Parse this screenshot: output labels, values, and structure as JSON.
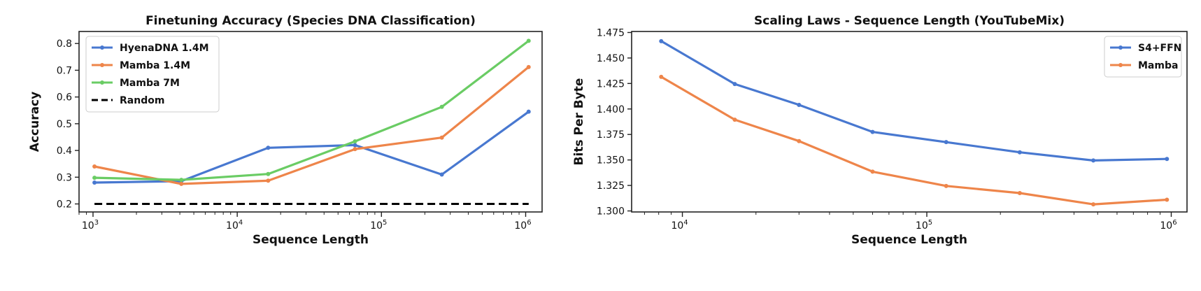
{
  "chart_data": [
    {
      "type": "line",
      "title": "Finetuning Accuracy (Species DNA Classification)",
      "xlabel": "Sequence Length",
      "ylabel": "Accuracy",
      "xscale": "log",
      "xlim": [
        800,
        1300000
      ],
      "ylim": [
        0.17,
        0.845
      ],
      "xticks": [
        {
          "value": 1000,
          "base": "10",
          "exp": "3"
        },
        {
          "value": 10000,
          "base": "10",
          "exp": "4"
        },
        {
          "value": 100000,
          "base": "10",
          "exp": "5"
        },
        {
          "value": 1000000,
          "base": "10",
          "exp": "6"
        }
      ],
      "yticks": [
        {
          "value": 0.2,
          "label": "0.2"
        },
        {
          "value": 0.3,
          "label": "0.3"
        },
        {
          "value": 0.4,
          "label": "0.4"
        },
        {
          "value": 0.5,
          "label": "0.5"
        },
        {
          "value": 0.6,
          "label": "0.6"
        },
        {
          "value": 0.7,
          "label": "0.7"
        },
        {
          "value": 0.8,
          "label": "0.8"
        }
      ],
      "legend_position": "top-left",
      "series": [
        {
          "name": "HyenaDNA 1.4M",
          "color": "#4878d0",
          "style": "solid",
          "markers": true,
          "x": [
            1024,
            4096,
            16384,
            65536,
            262144,
            1048576
          ],
          "y": [
            0.28,
            0.285,
            0.41,
            0.42,
            0.31,
            0.545
          ]
        },
        {
          "name": "Mamba 1.4M",
          "color": "#ee854a",
          "style": "solid",
          "markers": true,
          "x": [
            1024,
            4096,
            16384,
            65536,
            262144,
            1048576
          ],
          "y": [
            0.34,
            0.275,
            0.287,
            0.405,
            0.448,
            0.712
          ]
        },
        {
          "name": "Mamba 7M",
          "color": "#6acc64",
          "style": "solid",
          "markers": true,
          "x": [
            1024,
            4096,
            16384,
            65536,
            262144,
            1048576
          ],
          "y": [
            0.298,
            0.29,
            0.312,
            0.434,
            0.563,
            0.81
          ]
        },
        {
          "name": "Random",
          "color": "#000000",
          "style": "dashed",
          "markers": false,
          "x": [
            1024,
            1048576
          ],
          "y": [
            0.2,
            0.2
          ]
        }
      ]
    },
    {
      "type": "line",
      "title": "Scaling Laws - Sequence Length (YouTubeMix)",
      "xlabel": "Sequence Length",
      "ylabel": "Bits Per Byte",
      "xscale": "log",
      "xlim": [
        6200,
        1160000
      ],
      "ylim": [
        1.299,
        1.476
      ],
      "xticks": [
        {
          "value": 10000,
          "base": "10",
          "exp": "4"
        },
        {
          "value": 100000,
          "base": "10",
          "exp": "5"
        },
        {
          "value": 1000000,
          "base": "10",
          "exp": "6"
        }
      ],
      "yticks": [
        {
          "value": 1.3,
          "label": "1.300"
        },
        {
          "value": 1.325,
          "label": "1.325"
        },
        {
          "value": 1.35,
          "label": "1.350"
        },
        {
          "value": 1.375,
          "label": "1.375"
        },
        {
          "value": 1.4,
          "label": "1.400"
        },
        {
          "value": 1.425,
          "label": "1.425"
        },
        {
          "value": 1.45,
          "label": "1.450"
        },
        {
          "value": 1.475,
          "label": "1.475"
        }
      ],
      "legend_position": "top-right",
      "series": [
        {
          "name": "S4+FFN",
          "color": "#4878d0",
          "style": "solid",
          "markers": true,
          "x": [
            8192,
            16384,
            30000,
            60000,
            120000,
            240000,
            480000,
            960000
          ],
          "y": [
            1.4665,
            1.4245,
            1.404,
            1.3775,
            1.3675,
            1.3575,
            1.3495,
            1.351
          ]
        },
        {
          "name": "Mamba",
          "color": "#ee854a",
          "style": "solid",
          "markers": true,
          "x": [
            8192,
            16384,
            30000,
            60000,
            120000,
            240000,
            480000,
            960000
          ],
          "y": [
            1.4315,
            1.3895,
            1.3685,
            1.3385,
            1.3245,
            1.3175,
            1.3065,
            1.311
          ]
        }
      ]
    }
  ]
}
